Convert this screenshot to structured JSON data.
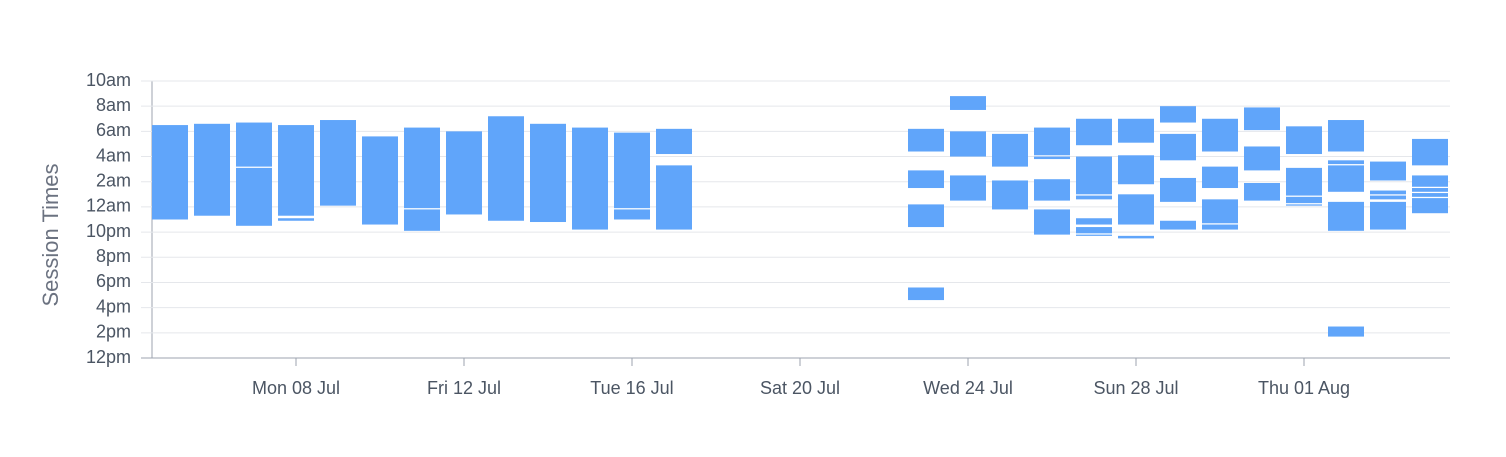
{
  "chart_data": {
    "type": "range-bar",
    "y_label": "Session Times",
    "categories": [
      null,
      null,
      null,
      "Mon 08 Jul",
      null,
      null,
      null,
      "Fri 12 Jul",
      null,
      null,
      null,
      "Tue 16 Jul",
      null,
      null,
      null,
      "Sat 20 Jul",
      null,
      null,
      null,
      "Wed 24 Jul",
      null,
      null,
      null,
      "Sun 28 Jul",
      null,
      null,
      null,
      "Thu 01 Aug",
      null,
      null,
      null
    ],
    "values": [
      [
        [
          11.0,
          18.5
        ]
      ],
      [
        [
          11.3,
          18.6
        ]
      ],
      [
        [
          10.5,
          15.1
        ],
        [
          15.2,
          18.7
        ]
      ],
      [
        [
          10.9,
          11.1
        ],
        [
          11.3,
          18.5
        ]
      ],
      [
        [
          12.1,
          18.9
        ]
      ],
      [
        [
          10.6,
          17.6
        ]
      ],
      [
        [
          10.1,
          11.8
        ],
        [
          11.9,
          18.3
        ]
      ],
      [
        [
          11.4,
          18.0
        ]
      ],
      [
        [
          10.9,
          19.2
        ]
      ],
      [
        [
          10.8,
          18.6
        ]
      ],
      [
        [
          10.2,
          18.3
        ]
      ],
      [
        [
          11.0,
          11.8
        ],
        [
          11.9,
          17.9
        ]
      ],
      [
        [
          16.2,
          18.2
        ],
        [
          10.2,
          15.3
        ]
      ],
      [],
      [],
      [],
      [],
      [],
      [
        [
          16.4,
          18.2
        ],
        [
          13.5,
          14.9
        ],
        [
          10.4,
          12.2
        ],
        [
          4.6,
          5.6
        ]
      ],
      [
        [
          19.7,
          20.8
        ],
        [
          16.0,
          18.0
        ],
        [
          12.5,
          14.5
        ]
      ],
      [
        [
          15.2,
          17.8
        ],
        [
          11.8,
          14.1
        ]
      ],
      [
        [
          16.1,
          18.3
        ],
        [
          15.8,
          16.0
        ],
        [
          12.5,
          14.2
        ],
        [
          9.8,
          11.8
        ]
      ],
      [
        [
          16.9,
          19.0
        ],
        [
          13.0,
          16.0
        ],
        [
          12.6,
          12.9
        ],
        [
          10.6,
          11.1
        ],
        [
          9.9,
          10.4
        ],
        [
          9.7,
          9.8
        ]
      ],
      [
        [
          17.1,
          19.0
        ],
        [
          13.8,
          16.1
        ],
        [
          10.6,
          13.0
        ],
        [
          9.5,
          9.7
        ]
      ],
      [
        [
          18.7,
          20.0
        ],
        [
          15.7,
          17.8
        ],
        [
          12.4,
          14.3
        ],
        [
          10.2,
          10.9
        ]
      ],
      [
        [
          16.4,
          19.0
        ],
        [
          13.5,
          15.2
        ],
        [
          10.7,
          12.6
        ],
        [
          10.2,
          10.6
        ]
      ],
      [
        [
          18.1,
          19.9
        ],
        [
          14.9,
          16.8
        ],
        [
          12.5,
          13.9
        ]
      ],
      [
        [
          16.2,
          18.4
        ],
        [
          12.9,
          15.1
        ],
        [
          12.3,
          12.8
        ],
        [
          12.1,
          12.2
        ]
      ],
      [
        [
          16.4,
          18.9
        ],
        [
          15.4,
          15.7
        ],
        [
          13.2,
          15.3
        ],
        [
          10.1,
          12.4
        ],
        [
          1.7,
          2.5
        ]
      ],
      [
        [
          14.1,
          15.6
        ],
        [
          13.0,
          13.3
        ],
        [
          12.6,
          12.9
        ],
        [
          10.2,
          12.4
        ]
      ],
      [
        [
          15.3,
          17.4
        ],
        [
          13.6,
          14.5
        ],
        [
          13.2,
          13.5
        ],
        [
          12.8,
          13.1
        ],
        [
          11.5,
          12.7
        ]
      ]
    ],
    "color": "#60a5fa",
    "ylim": [
      0,
      22
    ],
    "yticks": [
      {
        "value": 0,
        "label": "12pm"
      },
      {
        "value": 2,
        "label": "2pm"
      },
      {
        "value": 4,
        "label": "4pm"
      },
      {
        "value": 6,
        "label": "6pm"
      },
      {
        "value": 8,
        "label": "8pm"
      },
      {
        "value": 10,
        "label": "10pm"
      },
      {
        "value": 12,
        "label": "12am"
      },
      {
        "value": 14,
        "label": "2am"
      },
      {
        "value": 16,
        "label": "4am"
      },
      {
        "value": 18,
        "label": "6am"
      },
      {
        "value": 20,
        "label": "8am"
      },
      {
        "value": 22,
        "label": "10am"
      }
    ],
    "grid": true
  }
}
